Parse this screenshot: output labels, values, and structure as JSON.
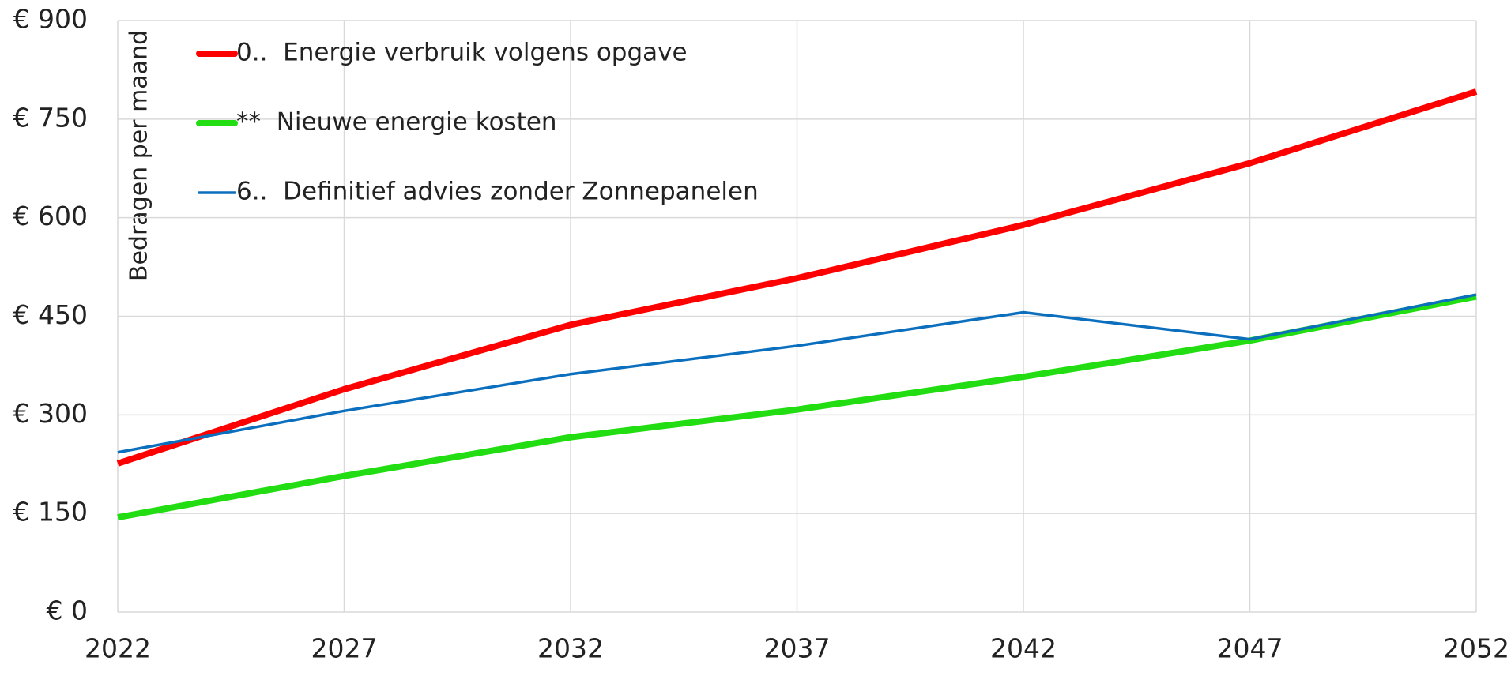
{
  "chart_data": {
    "type": "line",
    "y_label": "Bedragen per maand",
    "x": [
      2022,
      2027,
      2032,
      2037,
      2042,
      2047,
      2052
    ],
    "xlim": [
      2022,
      2052
    ],
    "xticks": [
      2022,
      2027,
      2032,
      2037,
      2042,
      2047,
      2052
    ],
    "ylim": [
      0,
      900
    ],
    "yticks": [
      {
        "value": 0,
        "label": "€ 0"
      },
      {
        "value": 150,
        "label": "€ 150"
      },
      {
        "value": 300,
        "label": "€ 300"
      },
      {
        "value": 450,
        "label": "€ 450"
      },
      {
        "value": 600,
        "label": "€ 600"
      },
      {
        "value": 750,
        "label": "€ 750"
      },
      {
        "value": 900,
        "label": "€ 900"
      }
    ],
    "grid": true,
    "legend": "top-left",
    "series": [
      {
        "name": "0..  Energie verbruik volgens opgave",
        "color": "#ff0000",
        "width": 8,
        "values": [
          226,
          339,
          437,
          508,
          589,
          683,
          792
        ]
      },
      {
        "name": "**  Nieuwe energie kosten",
        "color": "#22dd11",
        "width": 8,
        "values": [
          144,
          207,
          266,
          308,
          358,
          413,
          480
        ]
      },
      {
        "name": "6..  Definitief advies zonder Zonnepanelen",
        "color": "#0b6fbd",
        "width": 3.5,
        "values": [
          243,
          306,
          362,
          405,
          456,
          415,
          483
        ]
      }
    ]
  }
}
